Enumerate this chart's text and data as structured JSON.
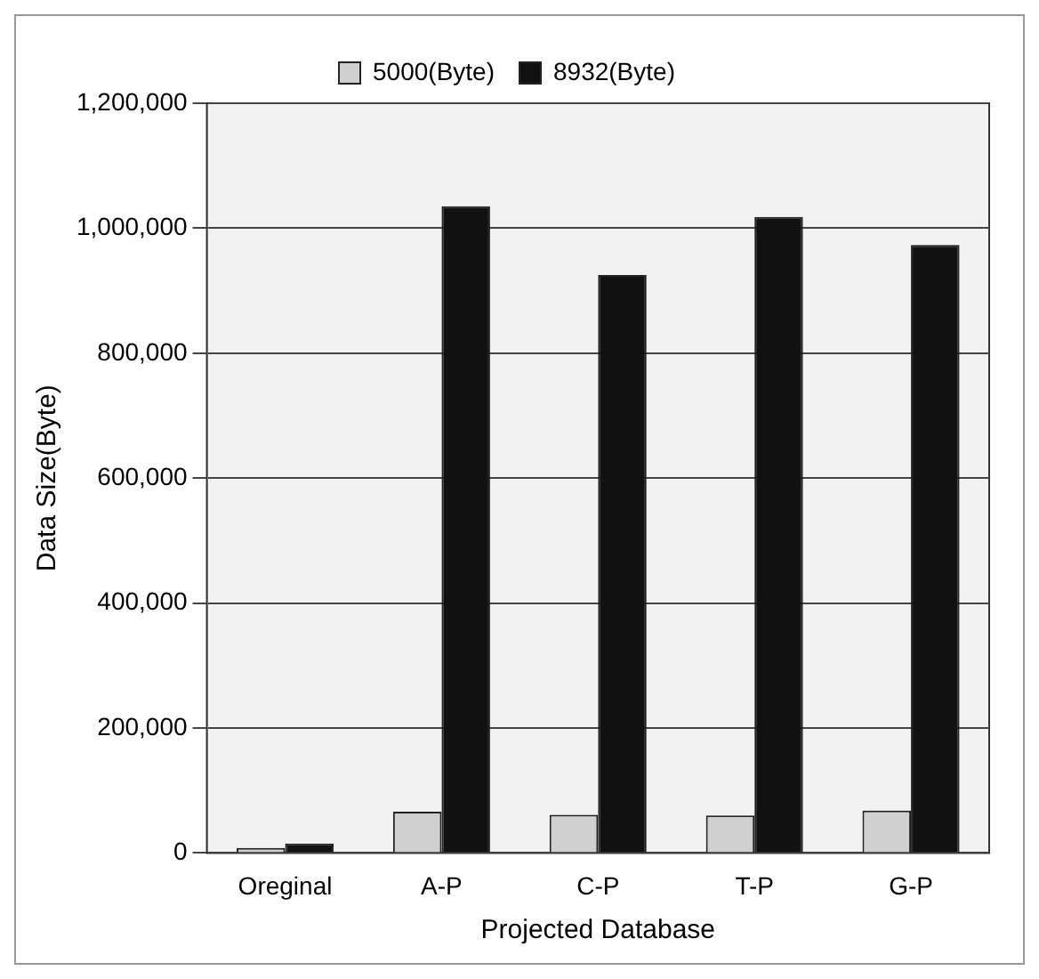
{
  "chart_data": {
    "type": "bar",
    "xlabel": "Projected Database",
    "ylabel": "Data Size(Byte)",
    "categories": [
      "Oreginal",
      "A-P",
      "C-P",
      "T-P",
      "G-P"
    ],
    "series": [
      {
        "name": "5000(Byte)",
        "color": "#d0d0d0",
        "values": [
          8000,
          66000,
          61000,
          60000,
          68000
        ]
      },
      {
        "name": "8932(Byte)",
        "color": "#111111",
        "values": [
          15000,
          1035000,
          925000,
          1018000,
          973000
        ]
      }
    ],
    "ylim": [
      0,
      1200000
    ],
    "yticks": [
      0,
      {
        "value": 200000,
        "label": "200,000"
      },
      {
        "value": 400000,
        "label": "400,000"
      },
      {
        "value": 600000,
        "label": "600,000"
      },
      {
        "value": 800000,
        "label": "800,000"
      },
      {
        "value": 1000000,
        "label": "1,000,000"
      },
      {
        "value": 1200000,
        "label": "1,200,000"
      }
    ],
    "grid": "y",
    "legend": "top"
  }
}
